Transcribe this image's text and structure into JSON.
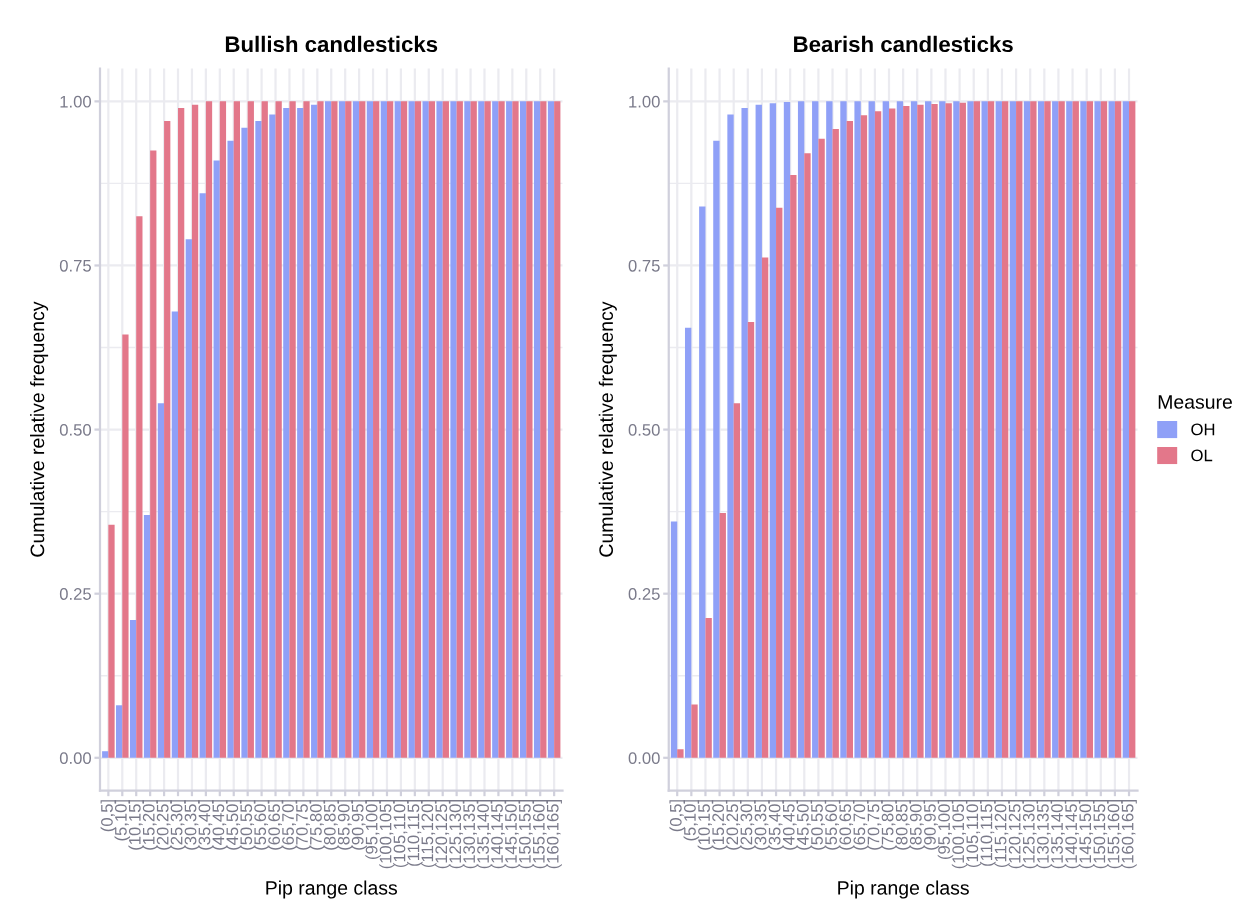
{
  "chart_data": [
    {
      "type": "bar",
      "title": "Bullish candlesticks",
      "xlabel": "Pip range class",
      "ylabel": "Cumulative relative frequency",
      "categories": [
        "(0,5]",
        "(5,10]",
        "(10,15]",
        "(15,20]",
        "(20,25]",
        "(25,30]",
        "(30,35]",
        "(35,40]",
        "(40,45]",
        "(45,50]",
        "(50,55]",
        "(55,60]",
        "(60,65]",
        "(65,70]",
        "(70,75]",
        "(75,80]",
        "(80,85]",
        "(85,90]",
        "(90,95]",
        "(95,100]",
        "(100,105]",
        "(105,110]",
        "(110,115]",
        "(115,120]",
        "(120,125]",
        "(125,130]",
        "(130,135]",
        "(135,140]",
        "(140,145]",
        "(145,150]",
        "(150,155]",
        "(155,160]",
        "(160,165]"
      ],
      "series": [
        {
          "color": "#8fa0f7",
          "values": [
            0.01,
            0.08,
            0.21,
            0.37,
            0.54,
            0.68,
            0.79,
            0.86,
            0.91,
            0.94,
            0.96,
            0.97,
            0.98,
            0.99,
            0.99,
            0.995,
            1,
            1,
            1,
            1,
            1,
            1,
            1,
            1,
            1,
            1,
            1,
            1,
            1,
            1,
            1,
            1,
            1
          ]
        },
        {
          "color": "#e3778a",
          "values": [
            0.355,
            0.645,
            0.825,
            0.925,
            0.97,
            0.99,
            0.995,
            1,
            1,
            1,
            1,
            1,
            1,
            1,
            1,
            1,
            1,
            1,
            1,
            1,
            1,
            1,
            1,
            1,
            1,
            1,
            1,
            1,
            1,
            1,
            1,
            1,
            1
          ]
        }
      ],
      "ylim": [
        -0.05,
        1.05
      ],
      "yticks": [
        {
          "value": 0,
          "label": "0.00"
        },
        {
          "value": 0.25,
          "label": "0.25"
        },
        {
          "value": 0.5,
          "label": "0.50"
        },
        {
          "value": 0.75,
          "label": "0.75"
        },
        {
          "value": 1,
          "label": "1.00"
        }
      ],
      "grid": true
    },
    {
      "type": "bar",
      "title": "Bearish candlesticks",
      "xlabel": "Pip range class",
      "ylabel": "Cumulative relative frequency",
      "legend_title": "Measure",
      "legend": "right",
      "categories": [
        "(0,5]",
        "(5,10]",
        "(10,15]",
        "(15,20]",
        "(20,25]",
        "(25,30]",
        "(30,35]",
        "(35,40]",
        "(40,45]",
        "(45,50]",
        "(50,55]",
        "(55,60]",
        "(60,65]",
        "(65,70]",
        "(70,75]",
        "(75,80]",
        "(80,85]",
        "(85,90]",
        "(90,95]",
        "(95,100]",
        "(100,105]",
        "(105,110]",
        "(110,115]",
        "(115,120]",
        "(120,125]",
        "(125,130]",
        "(130,135]",
        "(135,140]",
        "(140,145]",
        "(145,150]",
        "(150,155]",
        "(155,160]",
        "(160,165]"
      ],
      "series": [
        {
          "name": "OH",
          "color": "#8fa0f7",
          "values": [
            0.36,
            0.655,
            0.84,
            0.94,
            0.98,
            0.99,
            0.995,
            0.997,
            0.999,
            1,
            1,
            1,
            1,
            1,
            1,
            1,
            1,
            1,
            1,
            1,
            1,
            1,
            1,
            1,
            1,
            1,
            1,
            1,
            1,
            1,
            1,
            1,
            1
          ]
        },
        {
          "name": "OL",
          "color": "#e3778a",
          "values": [
            0.013,
            0.081,
            0.213,
            0.373,
            0.54,
            0.664,
            0.762,
            0.838,
            0.888,
            0.921,
            0.943,
            0.958,
            0.97,
            0.979,
            0.985,
            0.989,
            0.993,
            0.995,
            0.996,
            0.997,
            0.998,
            1,
            1,
            1,
            1,
            1,
            1,
            1,
            1,
            1,
            1,
            1,
            1
          ]
        }
      ],
      "ylim": [
        -0.05,
        1.05
      ],
      "yticks": [
        {
          "value": 0,
          "label": "0.00"
        },
        {
          "value": 0.25,
          "label": "0.25"
        },
        {
          "value": 0.5,
          "label": "0.50"
        },
        {
          "value": 0.75,
          "label": "0.75"
        },
        {
          "value": 1,
          "label": "1.00"
        }
      ],
      "grid": true
    }
  ]
}
